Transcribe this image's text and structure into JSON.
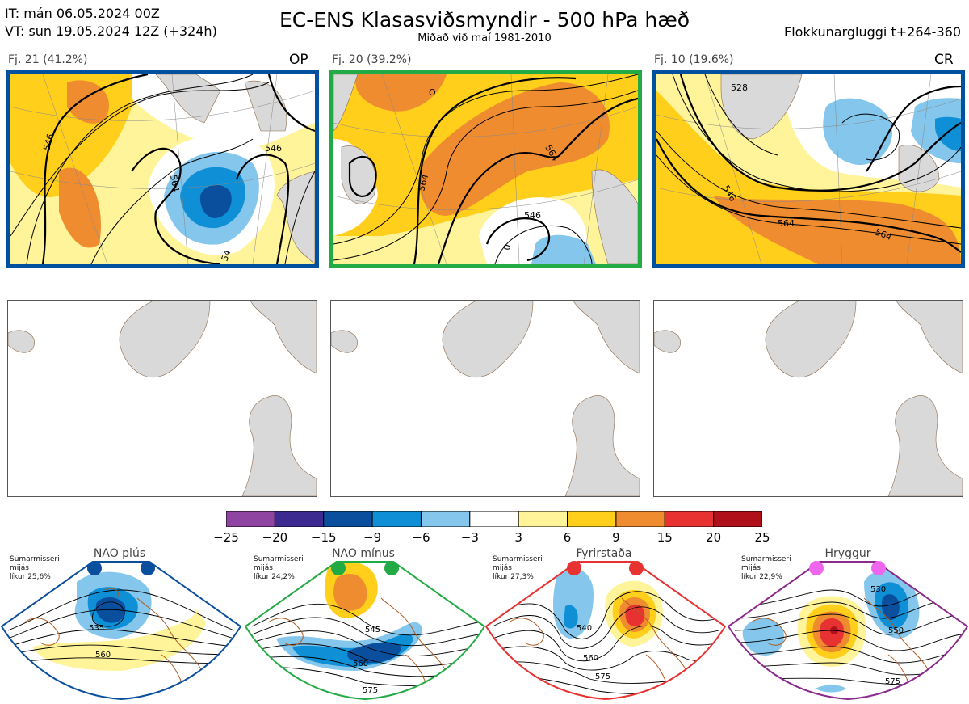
{
  "header": {
    "it_line": "IT: mán 06.05.2024 00Z",
    "vt_line": "VT: sun 19.05.2024 12Z  (+324h)",
    "title": "EC-ENS Klasasviðsmyndir - 500 hPa hæð",
    "subtitle": "Miðað við maí 1981-2010",
    "window": "Flokkunargluggi t+264-360"
  },
  "clusters": [
    {
      "label": "Fj. 21 (41.2%)",
      "tag": "OP",
      "frame_color": "#0050a0",
      "contours": [
        "546",
        "564",
        "546",
        "54"
      ]
    },
    {
      "label": "Fj. 20 (39.2%)",
      "tag": "",
      "frame_color": "#22aa44",
      "contours": [
        "564",
        "564",
        "546",
        "0",
        "O"
      ]
    },
    {
      "label": "Fj. 10 (19.6%)",
      "tag": "CR",
      "frame_color": "#0050a0",
      "contours": [
        "528",
        "546",
        "564",
        "564"
      ]
    }
  ],
  "colorbar": {
    "colors": [
      "#8e44a0",
      "#3d2a90",
      "#0a4f9e",
      "#0e8fd6",
      "#84c6ec",
      "#ffffff",
      "#fff49a",
      "#ffcf1c",
      "#f08c30",
      "#e83232",
      "#b0101a"
    ],
    "labels": [
      "−25",
      "−20",
      "−15",
      "−9",
      "−6",
      "−3",
      "3",
      "6",
      "9",
      "15",
      "20",
      "25"
    ]
  },
  "regimes": [
    {
      "name": "NAO plús",
      "note": [
        "Sumarmisseri",
        "mijás",
        "líkur 25,6%"
      ],
      "color": "#0a4f9e",
      "frame_color": "#0a4f9e",
      "contours": [
        "535",
        "560"
      ]
    },
    {
      "name": "NAO mínus",
      "note": [
        "Sumarmisseri",
        "mijás",
        "líkur 24,2%"
      ],
      "color": "#22aa44",
      "frame_color": "#22aa44",
      "contours": [
        "545",
        "560",
        "575"
      ]
    },
    {
      "name": "Fyrirstaða",
      "note": [
        "Sumarmisseri",
        "mijás",
        "líkur 27,3%"
      ],
      "color": "#e83232",
      "frame_color": "#e83232",
      "contours": [
        "540",
        "560",
        "575"
      ]
    },
    {
      "name": "Hryggur",
      "note": [
        "Sumarmisseri",
        "mijás",
        "líkur 22,9%"
      ],
      "color": "#ee66ee",
      "frame_color": "#8a2a8a",
      "contours": [
        "530",
        "550",
        "575"
      ]
    }
  ]
}
